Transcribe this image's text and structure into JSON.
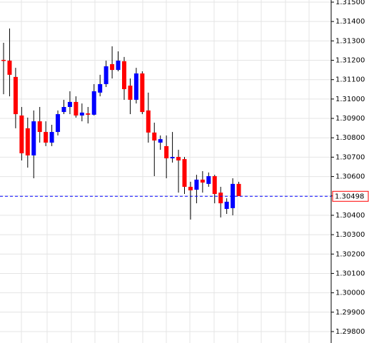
{
  "chart_data": {
    "type": "candlestick",
    "open": [
      1.31202,
      1.31198,
      1.31114,
      1.30915,
      1.30849,
      1.30709,
      1.30885,
      1.3083,
      1.30775,
      1.3083,
      1.30933,
      1.30959,
      1.30985,
      1.30915,
      1.30926,
      1.30919,
      1.31033,
      1.31077,
      1.3118,
      1.3115,
      1.31195,
      1.31069,
      1.30996,
      1.31132,
      1.30941,
      1.30827,
      1.30775,
      1.30757,
      1.30694,
      1.30701,
      1.3069,
      1.30547,
      1.30532,
      1.30584,
      1.30562,
      1.30602,
      1.30517,
      1.30433,
      1.30437,
      1.30562
    ],
    "high": [
      1.3129,
      1.31364,
      1.31161,
      1.30959,
      1.30904,
      1.30941,
      1.30959,
      1.30885,
      1.30867,
      1.30941,
      1.30996,
      1.3104,
      1.31014,
      1.30977,
      1.30959,
      1.31077,
      1.31125,
      1.31198,
      1.31272,
      1.31246,
      1.31217,
      1.31106,
      1.31161,
      1.31143,
      1.31033,
      1.30878,
      1.30812,
      1.30812,
      1.3083,
      1.30738,
      1.30701,
      1.30573,
      1.30609,
      1.30628,
      1.30621,
      1.30609,
      1.30547,
      1.30488,
      1.30591,
      1.30573
    ],
    "low": [
      1.31025,
      1.31014,
      1.30849,
      1.30683,
      1.30646,
      1.30591,
      1.30775,
      1.30757,
      1.30757,
      1.30812,
      1.30922,
      1.30922,
      1.30904,
      1.30885,
      1.30874,
      1.30915,
      1.31014,
      1.31062,
      1.31106,
      1.31143,
      1.30996,
      1.30922,
      1.30977,
      1.30922,
      1.30775,
      1.30602,
      1.30738,
      1.30591,
      1.30672,
      1.30517,
      1.3051,
      1.30378,
      1.30462,
      1.30517,
      1.30547,
      1.30462,
      1.30389,
      1.30407,
      1.304,
      1.30499
    ],
    "close": [
      1.31198,
      1.31125,
      1.30922,
      1.3072,
      1.30709,
      1.30885,
      1.3083,
      1.30775,
      1.3083,
      1.30922,
      1.30959,
      1.30985,
      1.30915,
      1.3093,
      1.30919,
      1.3104,
      1.31077,
      1.31169,
      1.3115,
      1.31198,
      1.31051,
      1.30996,
      1.31132,
      1.30933,
      1.30827,
      1.30786,
      1.30793,
      1.30694,
      1.30701,
      1.30683,
      1.30547,
      1.30529,
      1.30584,
      1.30569,
      1.30602,
      1.3051,
      1.30462,
      1.3047,
      1.30562,
      1.30499
    ],
    "up_color": "#0000ff",
    "down_color": "#ff0000",
    "current_price": 1.30498,
    "current_price_color": "#0000ff",
    "ylim": [
      1.29741,
      1.31511
    ],
    "yticks": [
      {
        "value": 1.315,
        "label": "1.31500"
      },
      {
        "value": 1.314,
        "label": "1.31400"
      },
      {
        "value": 1.313,
        "label": "1.31300"
      },
      {
        "value": 1.312,
        "label": "1.31200"
      },
      {
        "value": 1.311,
        "label": "1.31100"
      },
      {
        "value": 1.31,
        "label": "1.31000"
      },
      {
        "value": 1.309,
        "label": "1.30900"
      },
      {
        "value": 1.308,
        "label": "1.30800"
      },
      {
        "value": 1.307,
        "label": "1.30700"
      },
      {
        "value": 1.306,
        "label": "1.30600"
      },
      {
        "value": 1.305,
        "label": "1.30500"
      },
      {
        "value": 1.304,
        "label": "1.30400"
      },
      {
        "value": 1.303,
        "label": "1.30300"
      },
      {
        "value": 1.302,
        "label": "1.30200"
      },
      {
        "value": 1.301,
        "label": "1.30100"
      },
      {
        "value": 1.3,
        "label": "1.30000"
      },
      {
        "value": 1.299,
        "label": "1.29900"
      },
      {
        "value": 1.298,
        "label": "1.29800"
      }
    ],
    "grid": true
  }
}
